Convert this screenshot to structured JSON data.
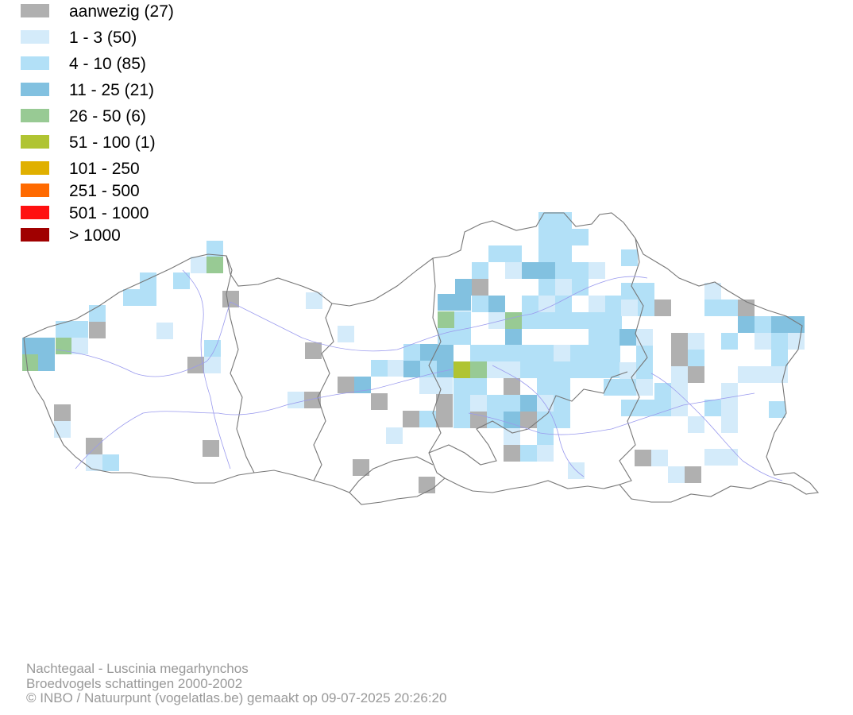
{
  "legend": {
    "items": [
      {
        "label": "aanwezig (27)",
        "color": "#b0b0b0"
      },
      {
        "label": "1 - 3 (50)",
        "color": "#d4ebfa"
      },
      {
        "label": "4 - 10 (85)",
        "color": "#b2e0f7"
      },
      {
        "label": "11 - 25 (21)",
        "color": "#82c1e0"
      },
      {
        "label": "26 - 50 (6)",
        "color": "#98ca94"
      },
      {
        "label": "51 - 100 (1)",
        "color": "#b0c432"
      },
      {
        "label": "101 - 250",
        "color": "#e0b000"
      },
      {
        "label": "251 - 500",
        "color": "#ff6a00"
      },
      {
        "label": "501 - 1000",
        "color": "#ff1010"
      },
      {
        "label": "> 1000",
        "color": "#a00000"
      }
    ]
  },
  "map": {
    "border_color": "#777777",
    "river_color": "#9a9aee"
  },
  "credits": {
    "line1": "Nachtegaal - Luscinia megarhynchos",
    "line2": "Broedvogels schattingen 2000-2002",
    "line3": "© INBO / Natuurpunt (vogelatlas.be) gemaakt op 09-07-2025 20:26:20"
  }
}
